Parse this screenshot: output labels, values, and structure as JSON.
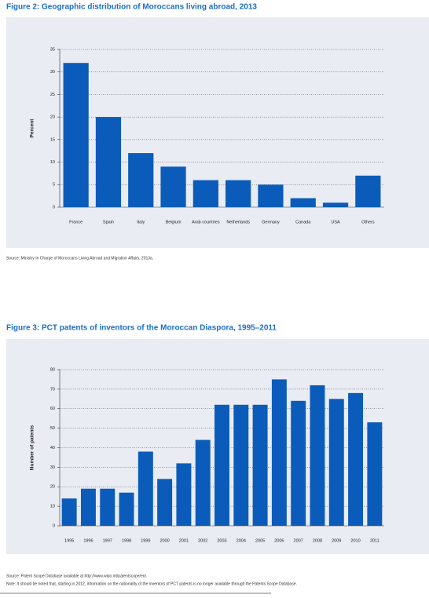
{
  "chart_data": [
    {
      "type": "bar",
      "title": "Figure 2: Geographic distribution of Moroccans living abroad, 2013",
      "y_label": "Percent",
      "categories": [
        "France",
        "Spain",
        "Italy",
        "Belgium",
        "Arab countries",
        "Netherlands",
        "Germany",
        "Canada",
        "USA",
        "Others"
      ],
      "values": [
        32,
        20,
        12,
        9,
        6,
        6,
        5,
        2,
        1,
        7
      ],
      "color": "#0b5cba",
      "ylim": [
        0,
        35
      ],
      "yticks": [
        0,
        5,
        10,
        15,
        20,
        25,
        30,
        35
      ],
      "grid": true,
      "source": "Source: Ministry In Charge of Moroccans Living Abroad and Migration Affairs, 2013a."
    },
    {
      "type": "bar",
      "title": "Figure 3: PCT patents of inventors of the Moroccan Diaspora, 1995–2011",
      "y_label": "Number of patents",
      "categories": [
        "1995",
        "1996",
        "1997",
        "1998",
        "1999",
        "2000",
        "2001",
        "2002",
        "2003",
        "2004",
        "2005",
        "2006",
        "2007",
        "2008",
        "2009",
        "2010",
        "2011"
      ],
      "values": [
        14,
        19,
        19,
        17,
        38,
        24,
        32,
        44,
        62,
        62,
        62,
        75,
        64,
        72,
        65,
        68,
        53
      ],
      "color": "#0b5cba",
      "ylim": [
        0,
        80
      ],
      "yticks": [
        0,
        10,
        20,
        30,
        40,
        50,
        60,
        70,
        80
      ],
      "grid": true,
      "source": "Source: Patent Scope Database available at http://www.wipo.int/patentscope/en/.",
      "note": "Note: It should be noted that, starting in 2012, information on the nationality of the inventors of PCT patents is no longer available through the Patents Scope Database."
    }
  ]
}
